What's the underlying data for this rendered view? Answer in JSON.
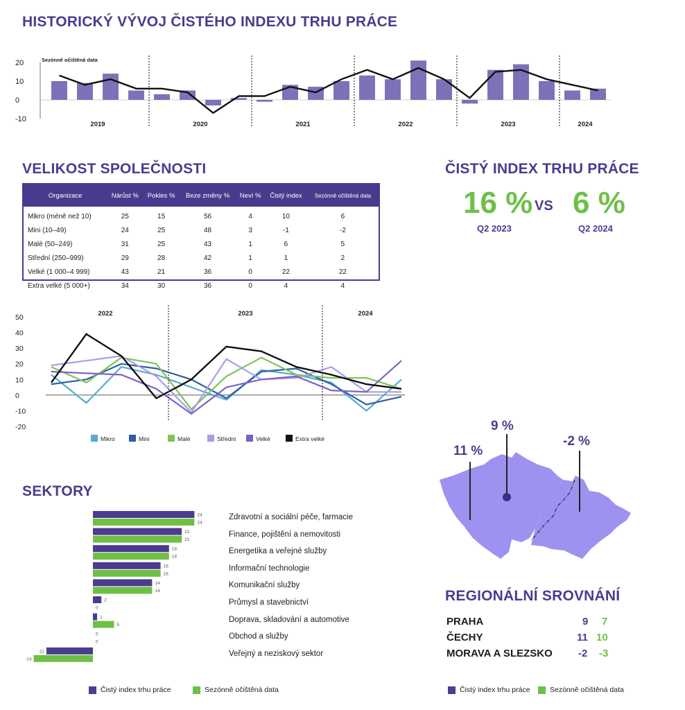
{
  "headings": {
    "historic": "HISTORICKÝ VÝVOJ ČISTÉHO INDEXU TRHU PRÁCE",
    "company_size": "VELIKOST SPOLEČNOSTI",
    "net_index": "ČISTÝ INDEX TRHU PRÁCE",
    "sectors": "SEKTORY",
    "regional": "REGIONÁLNÍ SROVNÁNÍ"
  },
  "kpi": {
    "left_value": "16 %",
    "left_label": "Q2 2023",
    "vs": "VS",
    "right_value": "6 %",
    "right_label": "Q2 2024"
  },
  "table": {
    "headers": [
      "Organizace",
      "Nárůst %",
      "Pokles %",
      "Beze změny %",
      "Neví %",
      "Čistý index",
      "Sezónně očištěná data"
    ],
    "rows": [
      [
        "Mikro (méně než 10)",
        "25",
        "15",
        "56",
        "4",
        "10",
        "6"
      ],
      [
        "Mini (10–49)",
        "24",
        "25",
        "48",
        "3",
        "-1",
        "-2"
      ],
      [
        "Malé (50–249)",
        "31",
        "25",
        "43",
        "1",
        "6",
        "5"
      ],
      [
        "Střední (250–999)",
        "29",
        "28",
        "42",
        "1",
        "1",
        "2"
      ],
      [
        "Velké (1 000–4 999)",
        "43",
        "21",
        "36",
        "0",
        "22",
        "22"
      ],
      [
        "Extra velké (5 000+)",
        "34",
        "30",
        "36",
        "0",
        "4",
        "4"
      ]
    ]
  },
  "regional": {
    "rows": [
      {
        "name": "PRAHA",
        "v1": "9",
        "v2": "7"
      },
      {
        "name": "ČECHY",
        "v1": "11",
        "v2": "10"
      },
      {
        "name": "MORAVA A SLEZSKO",
        "v1": "-2",
        "v2": "-3"
      }
    ],
    "map_labels": {
      "praha": "9 %",
      "cechy": "11 %",
      "morava": "-2 %"
    },
    "legend": [
      "Čistý index trhu práce",
      "Sezónně očištěná data"
    ]
  },
  "sector_legend": [
    "Čistý index trhu práce",
    "Sezónně očištěná data"
  ],
  "colors": {
    "purple": "#4b3c8f",
    "bar_purple": "#7b72b8",
    "green": "#6fbf47",
    "map": "#9d92f0"
  },
  "chart_data": [
    {
      "type": "bar",
      "note_label": "Sezónně očištěná data",
      "years": [
        "2019",
        "2020",
        "2021",
        "2022",
        "2023",
        "2024"
      ],
      "ylim": [
        -10,
        20
      ],
      "yticks": [
        "20",
        "10",
        "0",
        "-10"
      ],
      "series": [
        {
          "kind": "bar",
          "values": [
            10,
            9,
            14,
            5,
            3,
            5,
            -3,
            1,
            -1,
            8,
            7,
            10,
            13,
            11,
            21,
            11,
            -2,
            16,
            19,
            10,
            5,
            6
          ]
        },
        {
          "kind": "line",
          "values": [
            13,
            8,
            11,
            6,
            6,
            4,
            -7,
            2,
            2,
            7,
            4,
            11,
            16,
            11,
            17,
            11,
            1,
            15,
            16,
            11,
            8,
            5
          ]
        }
      ]
    },
    {
      "type": "line",
      "year_labels": [
        "2022",
        "2023",
        "2024"
      ],
      "ylim": [
        -20,
        50
      ],
      "yticks": [
        "50",
        "40",
        "30",
        "20",
        "10",
        "0",
        "-10",
        "-20"
      ],
      "series": [
        {
          "name": "Mikro",
          "color": "#5aa9d6",
          "values": [
            13,
            -5,
            18,
            13,
            5,
            -3,
            16,
            13,
            8,
            -10,
            10
          ]
        },
        {
          "name": "Mini",
          "color": "#2f5fa3",
          "values": [
            7,
            10,
            20,
            17,
            10,
            -2,
            15,
            17,
            7,
            -6,
            -1
          ]
        },
        {
          "name": "Malé",
          "color": "#7fc35a",
          "values": [
            18,
            8,
            24,
            20,
            -9,
            12,
            24,
            13,
            11,
            11,
            4
          ]
        },
        {
          "name": "Střední",
          "color": "#a99ee8",
          "values": [
            19,
            22,
            25,
            12,
            -11,
            23,
            10,
            11,
            18,
            2,
            2
          ]
        },
        {
          "name": "Velké",
          "color": "#7a62c4",
          "values": [
            15,
            14,
            13,
            4,
            -12,
            5,
            10,
            12,
            3,
            2,
            22
          ]
        },
        {
          "name": "Extra velké",
          "color": "#111111",
          "values": [
            8,
            39,
            25,
            -2,
            10,
            31,
            28,
            18,
            13,
            7,
            4
          ]
        }
      ]
    },
    {
      "type": "bar",
      "categories": [
        "Zdravotní a sociální péče, farmacie",
        "Finance, pojištění a nemovitosti",
        "Energetika a veřejné služby",
        "Informační technologie",
        "Komunikační služby",
        "Průmysl a stavebnictví",
        "Doprava, skladování a automotive",
        "Obchod a služby",
        "Veřejný a neziskový sektor"
      ],
      "series": [
        {
          "name": "Čistý index trhu práce",
          "values": [
            24,
            21,
            18,
            16,
            14,
            2,
            1,
            0,
            -11
          ]
        },
        {
          "name": "Sezónně očištěná data",
          "values": [
            24,
            21,
            18,
            16,
            14,
            0,
            5,
            0,
            -14
          ]
        }
      ]
    }
  ]
}
